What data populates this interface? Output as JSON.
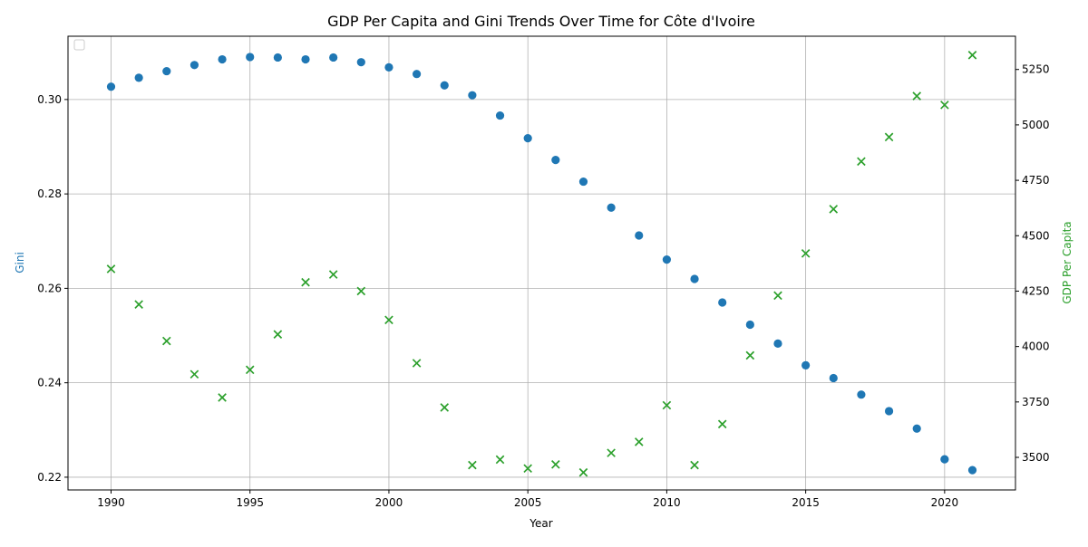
{
  "chart_data": {
    "type": "scatter",
    "title": "GDP Per Capita and Gini Trends Over Time for Côte d'Ivoire",
    "xlabel": "Year",
    "ylabel_left": "Gini",
    "ylabel_right": "GDP Per Capita",
    "xlim": [
      1988.45,
      2022.55
    ],
    "ylim_left": [
      0.2173,
      0.3134
    ],
    "ylim_right": [
      3353,
      5400
    ],
    "x_ticks": [
      1990,
      1995,
      2000,
      2005,
      2010,
      2015,
      2020
    ],
    "y_ticks_left": [
      0.22,
      0.24,
      0.26,
      0.28,
      0.3
    ],
    "y_ticks_left_labels": [
      "0.22",
      "0.24",
      "0.26",
      "0.28",
      "0.30"
    ],
    "y_ticks_right": [
      3500,
      3750,
      4000,
      4250,
      4500,
      4750,
      5000,
      5250
    ],
    "grid": true,
    "legend_placement": "top-left",
    "x": [
      1990,
      1991,
      1992,
      1993,
      1994,
      1995,
      1996,
      1997,
      1998,
      1999,
      2000,
      2001,
      2002,
      2003,
      2004,
      2005,
      2006,
      2007,
      2008,
      2009,
      2010,
      2011,
      2012,
      2013,
      2014,
      2015,
      2016,
      2017,
      2018,
      2019,
      2020,
      2021
    ],
    "series": [
      {
        "axis": "left",
        "marker": "circle",
        "color": "#1f77b4",
        "values": [
          0.3027,
          0.3046,
          0.306,
          0.3073,
          0.3085,
          0.309,
          0.3089,
          0.3085,
          0.3089,
          0.3079,
          0.3068,
          0.3054,
          0.303,
          0.3009,
          0.2966,
          0.2918,
          0.2872,
          0.2826,
          0.2771,
          0.2712,
          0.2661,
          0.262,
          0.257,
          0.2523,
          0.2483,
          0.2437,
          0.241,
          0.2375,
          0.234,
          0.2303,
          0.2238,
          0.2215
        ]
      },
      {
        "axis": "right",
        "marker": "x",
        "color": "#2ca02c",
        "values": [
          4350,
          4190,
          4025,
          3875,
          3770,
          3895,
          4055,
          4290,
          4325,
          4250,
          4120,
          3925,
          3725,
          3465,
          3490,
          3450,
          3468,
          3432,
          3520,
          3570,
          3735,
          3465,
          3650,
          3960,
          4230,
          4420,
          4620,
          4835,
          4945,
          5130,
          5090,
          5315
        ]
      }
    ]
  }
}
